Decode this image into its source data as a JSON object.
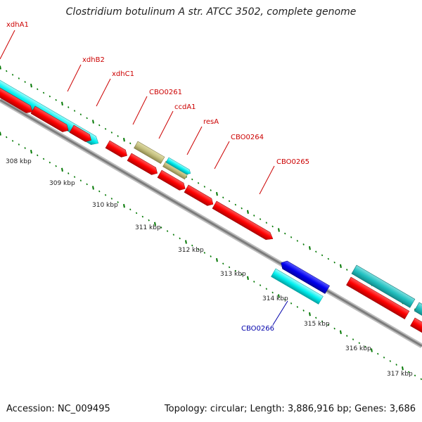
{
  "title": "Clostridium botulinum A str. ATCC 3502, complete genome",
  "accession": "Accession: NC_009495",
  "topology": "Topology: circular; Length: 3,886,916 bp; Genes: 3,686",
  "colors": {
    "label_fwd": "#cc0000",
    "label_rev": "#0000aa",
    "cds": "#ff0000",
    "cds_rev": "#0000ee",
    "rna": "#00ffff",
    "other": "#c8c48a",
    "backbone": "#888888",
    "ticks": "#007700"
  },
  "genes": [
    {
      "name": "xdhA1",
      "type": "rna",
      "strand": "+"
    },
    {
      "name": "xdhB2",
      "type": "rna",
      "strand": "+"
    },
    {
      "name": "xdhC1",
      "type": "rna",
      "strand": "+"
    },
    {
      "name": "CBO0261",
      "type": "other",
      "strand": "+"
    },
    {
      "name": "ccdA1",
      "type": "other",
      "strand": "+"
    },
    {
      "name": "resA",
      "type": "rna",
      "strand": "+"
    },
    {
      "name": "CBO0264",
      "type": "cds",
      "strand": "+"
    },
    {
      "name": "CBO0265",
      "type": "cds",
      "strand": "+"
    },
    {
      "name": "CBO0266",
      "type": "cds",
      "strand": "-"
    }
  ],
  "kbp_labels": [
    "308 kbp",
    "309 kbp",
    "310 kbp",
    "311 kbp",
    "312 kbp",
    "313 kbp",
    "314 kbp",
    "315 kbp",
    "316 kbp",
    "317 kbp"
  ]
}
